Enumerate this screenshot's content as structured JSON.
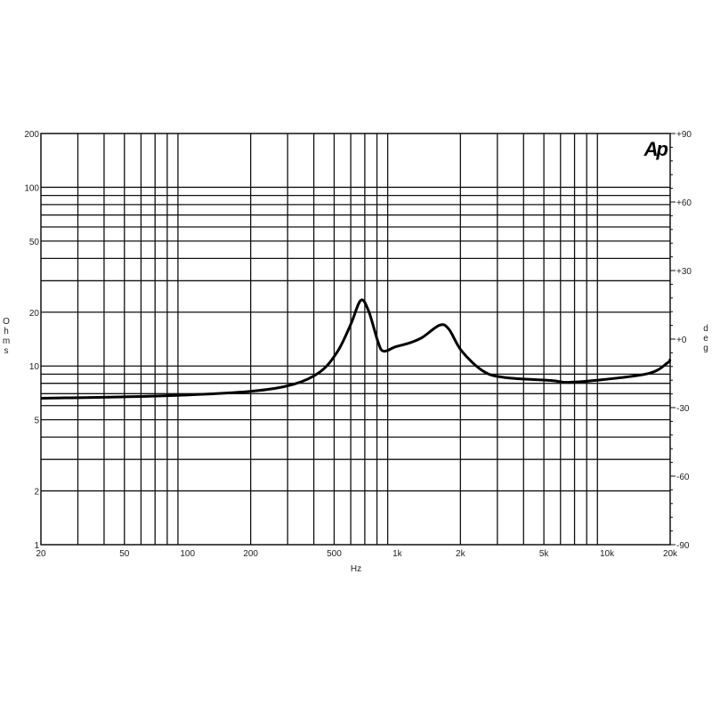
{
  "chart_data": {
    "type": "line",
    "title": "",
    "logo": "Ap",
    "xlabel": "Hz",
    "ylabel": "Ohms",
    "y2label": "deg",
    "x_scale": "log",
    "y_scale": "log",
    "xlim": [
      20,
      20000
    ],
    "ylim": [
      1,
      200
    ],
    "y2lim": [
      -90,
      90
    ],
    "grid": true,
    "x_ticks": [
      {
        "v": 20,
        "label": "20"
      },
      {
        "v": 50,
        "label": "50"
      },
      {
        "v": 100,
        "label": "100"
      },
      {
        "v": 200,
        "label": "200"
      },
      {
        "v": 500,
        "label": "500"
      },
      {
        "v": 1000,
        "label": "1k"
      },
      {
        "v": 2000,
        "label": "2k"
      },
      {
        "v": 5000,
        "label": "5k"
      },
      {
        "v": 10000,
        "label": "10k"
      },
      {
        "v": 20000,
        "label": "20k"
      }
    ],
    "y_ticks": [
      {
        "v": 200,
        "label": "200"
      },
      {
        "v": 100,
        "label": "100"
      },
      {
        "v": 50,
        "label": "50"
      },
      {
        "v": 20,
        "label": "20"
      },
      {
        "v": 10,
        "label": "10"
      },
      {
        "v": 5,
        "label": "5"
      },
      {
        "v": 2,
        "label": "2"
      },
      {
        "v": 1,
        "label": "1"
      }
    ],
    "y2_ticks": [
      {
        "v": 90,
        "label": "+90"
      },
      {
        "v": 60,
        "label": "+60"
      },
      {
        "v": 30,
        "label": "+30"
      },
      {
        "v": 0,
        "label": "+0"
      },
      {
        "v": -30,
        "label": "-30"
      },
      {
        "v": -60,
        "label": "-60"
      },
      {
        "v": -90,
        "label": "-90"
      }
    ],
    "series": [
      {
        "color": "#000000",
        "x": [
          20,
          74,
          196,
          320,
          430,
          520,
          600,
          670,
          730,
          810,
          860,
          980,
          1130,
          1310,
          1590,
          1760,
          2030,
          2590,
          3310,
          5400,
          6540,
          9690,
          15900,
          19400,
          20000
        ],
        "y": [
          6.6,
          6.8,
          7.2,
          7.9,
          9.3,
          12.1,
          17.1,
          23.3,
          20.3,
          13.6,
          12.1,
          12.8,
          13.4,
          14.4,
          16.9,
          16.1,
          12.1,
          9.3,
          8.6,
          8.3,
          8.1,
          8.4,
          9.1,
          10.4,
          10.9
        ]
      }
    ]
  }
}
